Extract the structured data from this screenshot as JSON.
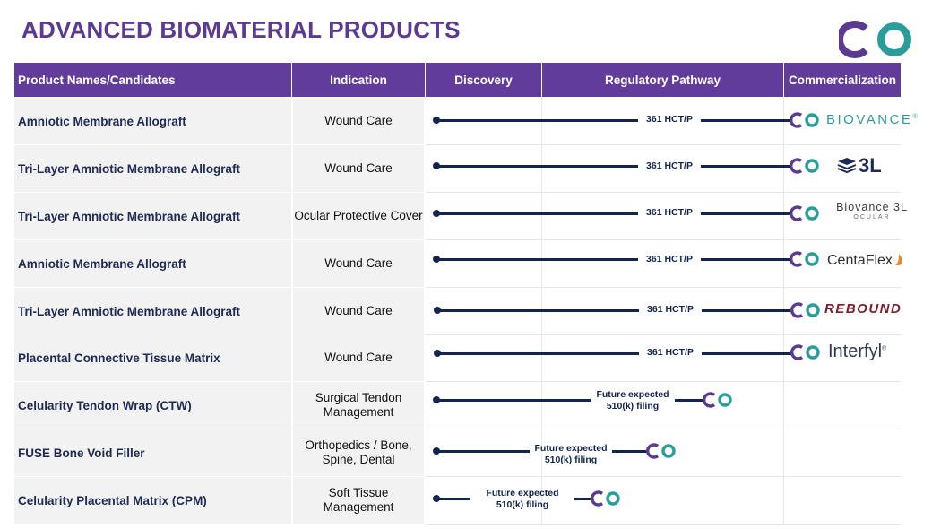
{
  "title": "ADVANCED BIOMATERIAL PRODUCTS",
  "colors": {
    "header_bg": "#613C9A",
    "title": "#5B3A92",
    "track": "#13254F",
    "logo_purple": "#5B3A92",
    "logo_teal": "#2A9D9A"
  },
  "columns": {
    "product": "Product Names/Candidates",
    "indication": "Indication",
    "discovery": "Discovery",
    "regulatory": "Regulatory Pathway",
    "commercialization": "Commercialization"
  },
  "rows": [
    {
      "product": "Amniotic Membrane Allograft",
      "indication": "Wound Care",
      "pathway": "361 HCT/P",
      "brand": "BIOVANCE",
      "brand_mark": "®"
    },
    {
      "product": "Tri-Layer Amniotic Membrane Allograft",
      "indication": "Wound Care",
      "pathway": "361 HCT/P",
      "brand": "3L"
    },
    {
      "product": "Tri-Layer Amniotic Membrane Allograft",
      "indication": "Ocular Protective Cover",
      "pathway": "361 HCT/P",
      "brand": "Biovance 3L",
      "brand_sub": "OCULAR"
    },
    {
      "product": "Amniotic Membrane Allograft",
      "indication": "Wound Care",
      "pathway": "361 HCT/P",
      "brand": "CentaFlex"
    },
    {
      "product": "Tri-Layer Amniotic Membrane Allograft",
      "indication": "Wound Care",
      "pathway": "361 HCT/P",
      "brand": "REBOUND"
    },
    {
      "product": "Placental Connective  Tissue Matrix",
      "indication": "Wound Care",
      "pathway": "361 HCT/P",
      "brand": "Interfyl",
      "brand_mark": "®"
    },
    {
      "product": "Celularity Tendon Wrap (CTW)",
      "indication": "Surgical Tendon Management",
      "pathway": "Future expected 510(k) filing"
    },
    {
      "product": "FUSE Bone Void Filler",
      "indication": "Orthopedics / Bone, Spine, Dental",
      "pathway": "Future expected 510(k) filing"
    },
    {
      "product": "Celularity Placental Matrix (CPM)",
      "indication": "Soft Tissue Management",
      "pathway": "Future expected 510(k) filing"
    }
  ]
}
